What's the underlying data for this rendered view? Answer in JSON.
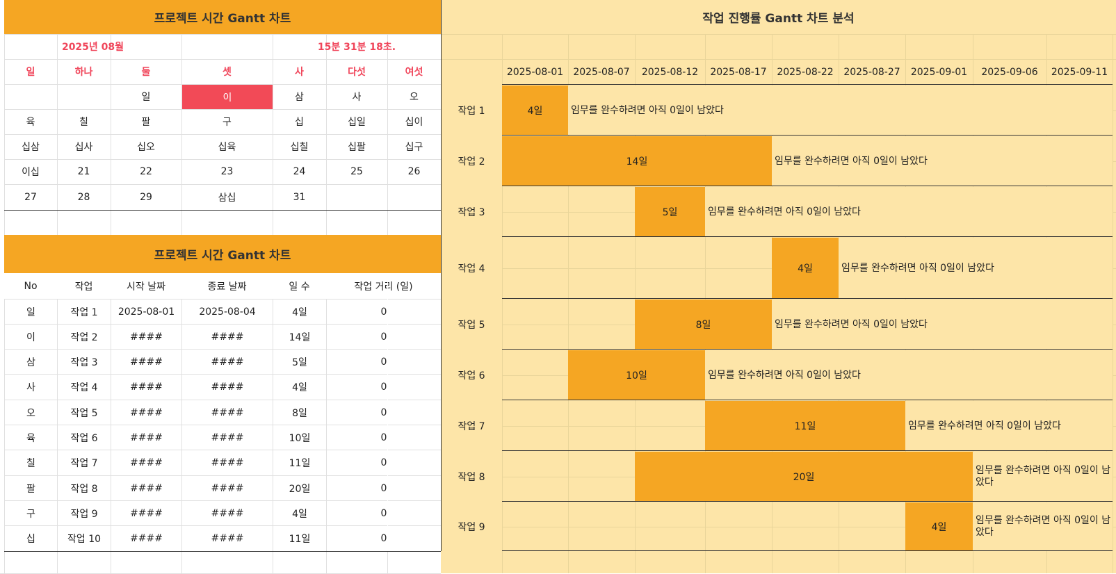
{
  "calendar": {
    "title": "프로젝트 시간 Gantt 차트",
    "month_label": "2025년 08월",
    "time_label": "15분 31분 18초.",
    "weekdays": [
      "일",
      "하나",
      "둘",
      "셋",
      "사",
      "다섯",
      "여섯"
    ],
    "weeks": [
      [
        "",
        "",
        "일",
        "이",
        "삼",
        "사",
        "오"
      ],
      [
        "육",
        "칠",
        "팔",
        "구",
        "십",
        "십일",
        "십이"
      ],
      [
        "십삼",
        "십사",
        "십오",
        "십육",
        "십칠",
        "십팔",
        "십구"
      ],
      [
        "이십",
        "21",
        "22",
        "23",
        "24",
        "25",
        "26"
      ],
      [
        "27",
        "28",
        "29",
        "삼십",
        "31",
        "",
        ""
      ]
    ],
    "highlight": {
      "week": 0,
      "day": 3,
      "color": "#f24a57"
    }
  },
  "task_table": {
    "title": "프로젝트 시간 Gantt 차트",
    "headers": [
      "No",
      "작업",
      "시작 날짜",
      "종료 날짜",
      "일 수",
      "작업 거리 (일)"
    ],
    "rows": [
      [
        "일",
        "작업 1",
        "2025-08-01",
        "2025-08-04",
        "4일",
        "0"
      ],
      [
        "이",
        "작업 2",
        "####",
        "####",
        "14일",
        "0"
      ],
      [
        "삼",
        "작업 3",
        "####",
        "####",
        "5일",
        "0"
      ],
      [
        "사",
        "작업 4",
        "####",
        "####",
        "4일",
        "0"
      ],
      [
        "오",
        "작업 5",
        "####",
        "####",
        "8일",
        "0"
      ],
      [
        "육",
        "작업 6",
        "####",
        "####",
        "10일",
        "0"
      ],
      [
        "칠",
        "작업 7",
        "####",
        "####",
        "11일",
        "0"
      ],
      [
        "팔",
        "작업 8",
        "####",
        "####",
        "20일",
        "0"
      ],
      [
        "구",
        "작업 9",
        "####",
        "####",
        "4일",
        "0"
      ],
      [
        "십",
        "작업 10",
        "####",
        "####",
        "11일",
        "0"
      ]
    ]
  },
  "gantt": {
    "title": "작업 진행률 Gantt 차트 분석",
    "dates": [
      "2025-08-01",
      "2025-08-07",
      "2025-08-12",
      "2025-08-17",
      "2025-08-22",
      "2025-08-27",
      "2025-09-01",
      "2025-09-06",
      "2025-09-11"
    ],
    "tasks": [
      {
        "name": "작업 1",
        "start_col": 0,
        "span_cols": 1,
        "label": "4일",
        "remaining": "임무를 완수하려면 아직 0일이 남았다"
      },
      {
        "name": "작업 2",
        "start_col": 0,
        "span_cols": 4,
        "label": "14일",
        "remaining": "임무를 완수하려면 아직 0일이 남았다"
      },
      {
        "name": "작업 3",
        "start_col": 2,
        "span_cols": 1,
        "label": "5일",
        "remaining": "임무를 완수하려면 아직 0일이 남았다"
      },
      {
        "name": "작업 4",
        "start_col": 4,
        "span_cols": 1,
        "label": "4일",
        "remaining": "임무를 완수하려면 아직 0일이 남았다"
      },
      {
        "name": "작업 5",
        "start_col": 2,
        "span_cols": 2,
        "label": "8일",
        "remaining": "임무를 완수하려면 아직 0일이 남았다"
      },
      {
        "name": "작업 6",
        "start_col": 1,
        "span_cols": 2,
        "label": "10일",
        "remaining": "임무를 완수하려면 아직 0일이 남았다"
      },
      {
        "name": "작업 7",
        "start_col": 3,
        "span_cols": 3,
        "label": "11일",
        "remaining": "임무를 완수하려면 아직 0일이 남았다"
      },
      {
        "name": "작업 8",
        "start_col": 2,
        "span_cols": 5,
        "label": "20일",
        "remaining": "임무를 완수하려면 아직 0일이 남았다"
      },
      {
        "name": "작업 9",
        "start_col": 6,
        "span_cols": 1,
        "label": "4일",
        "remaining": "임무를 완수하려면 아직 0일이 남았다"
      }
    ]
  },
  "colors": {
    "accent": "#f5a623",
    "light": "#fde5a8",
    "highlight": "#f24a57",
    "calendar_text": "#f0455a"
  }
}
